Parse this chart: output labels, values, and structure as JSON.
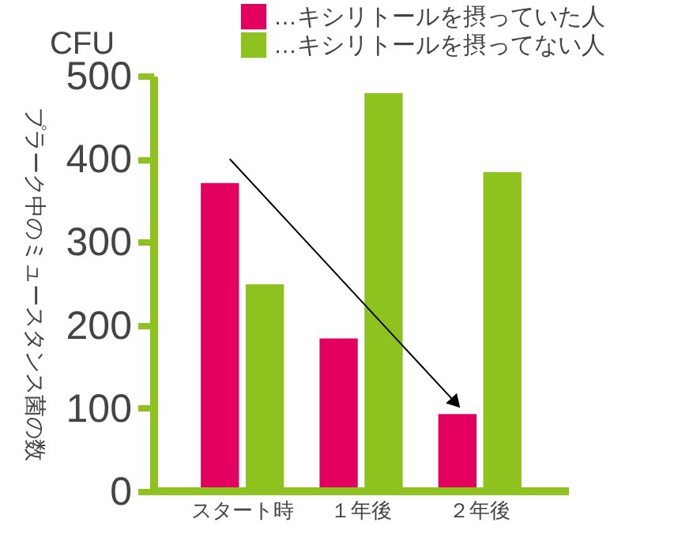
{
  "chart_data": {
    "type": "bar",
    "ylabel": "プラーク中のミュースタンス菌の数",
    "annotations": [
      "CFU"
    ],
    "categories": [
      "スタート時",
      "１年後",
      "２年後"
    ],
    "series": [
      {
        "name": "…キシリトールを摂っていた人",
        "color": "#e4005f",
        "values": [
          371,
          184,
          93
        ]
      },
      {
        "name": "…キシリトールを摂ってない人",
        "color": "#8dc21f",
        "values": [
          249,
          479,
          384
        ]
      }
    ],
    "ylim": [
      0,
      500
    ],
    "yticks": [
      0,
      100,
      200,
      300,
      400,
      500
    ],
    "legend": "top right",
    "grid": false
  }
}
